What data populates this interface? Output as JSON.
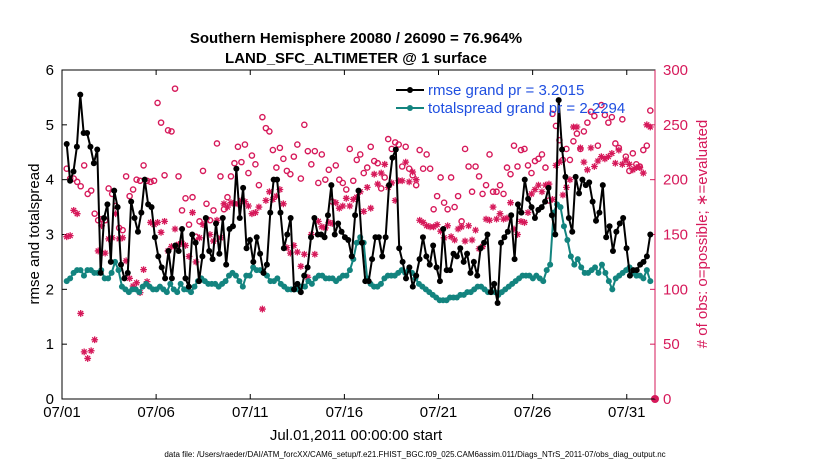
{
  "chart_data": {
    "type": "line",
    "title_line1": "Southern Hemisphere 20080 / 26090 = 76.964%",
    "title_line2": "LAND_SFC_ALTIMETER @ 1 surface",
    "xlabel": "Jul.01,2011 00:00:00 start",
    "ylabel": "rmse and totalspread",
    "ylabel_right": "# of obs: o=possible; ∗=evaluated",
    "footnote": "data file: /Users/raeder/DAI/ATM_forcXX/CAM6_setup/f.e21.FHIST_BGC.f09_025.CAM6assim.011/Diags_NTrS_2011-07/obs_diag_output.nc",
    "xlim": [
      0,
      31.5
    ],
    "ylim": [
      0,
      6
    ],
    "ylim_right": [
      0,
      300
    ],
    "x_ticks": [
      0,
      5,
      10,
      15,
      20,
      25,
      30
    ],
    "x_tick_labels": [
      "07/01",
      "07/06",
      "07/11",
      "07/16",
      "07/21",
      "07/26",
      "07/31"
    ],
    "y_ticks": [
      0,
      1,
      2,
      3,
      4,
      5,
      6
    ],
    "y_tick_labels": [
      "0",
      "1",
      "2",
      "3",
      "4",
      "5",
      "6"
    ],
    "y_right_ticks": [
      0,
      50,
      100,
      150,
      200,
      250,
      300
    ],
    "y_right_tick_labels": [
      "0",
      "50",
      "100",
      "150",
      "200",
      "250",
      "300"
    ],
    "colors": {
      "rmse": "#000000",
      "spread": "#13847f",
      "obs": "#d6195a",
      "legend_text": "#1f4fe0"
    },
    "series": [
      {
        "name": "rmse grand pr = 3.2015",
        "color": "#000000",
        "values": [
          4.65,
          3.98,
          4.15,
          4.6,
          5.55,
          4.85,
          4.85,
          4.6,
          4.3,
          4.55,
          2.3,
          3.3,
          3.55,
          2.5,
          3.8,
          3.5,
          2.45,
          2.2,
          2.3,
          3.6,
          3.3,
          3.05,
          3.4,
          4.0,
          3.55,
          3.5,
          2.95,
          2.6,
          2.4,
          2.2,
          2.7,
          2.2,
          2.8,
          2.7,
          3.1,
          2.2,
          2.05,
          3.0,
          2.85,
          2.15,
          2.6,
          3.3,
          2.7,
          2.55,
          3.2,
          2.65,
          3.3,
          2.45,
          3.1,
          3.15,
          4.2,
          3.3,
          3.85,
          2.75,
          2.9,
          2.5,
          2.95,
          2.65,
          2.3,
          2.45,
          3.4,
          4.0,
          4.0,
          3.4,
          2.75,
          3.0,
          3.3,
          2.0,
          2.1,
          1.95,
          2.25,
          2.4,
          2.95,
          3.3,
          3.0,
          3.0,
          2.95,
          3.35,
          3.9,
          3.0,
          3.2,
          3.05,
          2.95,
          2.9,
          2.6,
          3.35,
          3.8,
          2.85,
          2.15,
          2.15,
          2.55,
          2.95,
          2.95,
          2.6,
          2.95,
          3.9,
          4.4,
          4.55,
          2.75,
          2.5,
          2.2,
          2.4,
          2.05,
          2.25,
          2.55,
          2.95,
          2.6,
          2.45,
          2.8,
          2.4,
          2.15,
          3.1,
          2.35,
          2.35,
          2.65,
          2.6,
          2.75,
          2.5,
          2.65,
          2.3,
          2.5,
          2.25,
          2.75,
          2.85,
          3.0,
          1.95,
          2.1,
          1.75,
          2.85,
          2.95,
          3.05,
          3.35,
          2.55,
          3.55,
          3.4,
          4.0,
          3.65,
          3.5,
          3.3,
          3.45,
          3.5,
          3.6,
          3.85,
          3.35,
          3.0,
          5.45,
          4.55,
          4.05,
          3.3,
          3.05,
          4.05,
          3.75,
          4.0,
          3.9,
          3.95,
          3.6,
          3.25,
          3.4,
          3.9,
          2.95,
          3.15,
          2.7,
          3.05,
          3.2,
          3.3,
          2.75,
          2.25,
          2.35,
          2.35,
          2.45,
          2.5,
          2.6,
          3.0
        ]
      },
      {
        "name": "totalspread grand pr = 2.2294",
        "color": "#13847f",
        "values": [
          2.15,
          2.2,
          2.3,
          2.35,
          2.35,
          2.25,
          2.35,
          2.35,
          2.3,
          2.3,
          2.35,
          2.2,
          2.2,
          2.3,
          2.5,
          2.35,
          2.05,
          2.0,
          1.95,
          2.0,
          2.0,
          1.95,
          2.05,
          2.1,
          2.05,
          2.0,
          2.0,
          2.05,
          2.0,
          1.95,
          2.1,
          2.0,
          1.95,
          2.1,
          2.0,
          2.0,
          1.95,
          2.05,
          2.15,
          2.2,
          2.15,
          2.1,
          2.1,
          2.1,
          2.05,
          2.1,
          2.15,
          2.25,
          2.3,
          2.25,
          2.15,
          2.05,
          2.25,
          2.25,
          2.4,
          2.35,
          2.35,
          2.3,
          2.25,
          2.15,
          2.15,
          2.2,
          2.1,
          2.05,
          2.0,
          2.0,
          2.0,
          2.0,
          2.05,
          2.05,
          2.15,
          2.1,
          2.2,
          2.25,
          2.25,
          2.2,
          2.2,
          2.2,
          2.15,
          2.2,
          2.25,
          2.25,
          2.35,
          2.55,
          2.85,
          2.95,
          2.85,
          2.2,
          2.1,
          2.05,
          2.05,
          2.1,
          2.2,
          2.25,
          2.25,
          2.25,
          2.3,
          2.35,
          2.3,
          2.35,
          2.3,
          2.2,
          2.1,
          2.05,
          2.0,
          1.95,
          1.9,
          1.85,
          1.8,
          1.8,
          1.8,
          1.85,
          1.85,
          1.85,
          1.9,
          1.9,
          1.95,
          1.95,
          2.0,
          2.05,
          2.05,
          2.0,
          1.95,
          1.95,
          1.95,
          1.9,
          1.95,
          2.0,
          2.05,
          2.1,
          2.15,
          2.2,
          2.25,
          2.25,
          2.25,
          2.2,
          2.25,
          2.2,
          2.15,
          2.35,
          2.45,
          3.4,
          3.55,
          3.5,
          3.15,
          2.9,
          2.6,
          2.45,
          2.55,
          2.4,
          2.3,
          2.3,
          2.35,
          2.4,
          2.3,
          2.45,
          2.3,
          2.15,
          2.0,
          2.2,
          2.25,
          2.3,
          2.35,
          2.4,
          2.3,
          2.25,
          2.25,
          2.2,
          2.35,
          2.15
        ]
      }
    ],
    "obs_possible": {
      "marker": "o",
      "color": "#d6195a",
      "values": [
        210,
        201,
        201,
        198,
        194,
        213,
        187,
        190,
        169,
        163,
        164,
        163,
        192,
        187,
        176,
        156,
        154,
        203,
        185,
        191,
        200,
        199,
        213,
        199,
        198,
        199,
        270,
        252,
        204,
        245,
        244,
        283,
        203,
        172,
        183,
        159,
        184,
        148,
        162,
        208,
        178,
        163,
        172,
        233,
        203,
        173,
        184,
        203,
        215,
        230,
        216,
        232,
        206,
        222,
        214,
        195,
        257,
        247,
        244,
        227,
        211,
        229,
        219,
        208,
        205,
        221,
        232,
        201,
        250,
        226,
        214,
        226,
        197,
        223,
        200,
        209,
        180,
        213,
        200,
        197,
        191,
        228,
        199,
        218,
        223,
        206,
        211,
        230,
        217,
        215,
        192,
        202,
        237,
        228,
        234,
        232,
        212,
        230,
        210,
        204,
        195,
        227,
        210,
        223,
        210,
        173,
        185,
        202,
        179,
        173,
        202,
        175,
        185,
        162,
        228,
        212,
        189,
        212,
        203,
        187,
        195,
        223,
        189,
        189,
        195,
        187,
        211,
        205,
        231,
        212,
        227,
        228,
        213,
        206,
        217,
        219,
        223,
        211,
        181,
        260,
        249,
        236,
        218,
        228,
        218,
        235,
        242,
        228,
        244,
        252,
        262,
        258,
        231,
        268,
        259,
        252,
        257,
        233,
        229,
        255,
        221,
        208,
        224,
        214,
        212,
        227,
        231,
        263
      ]
    },
    "obs_evaluated": {
      "marker": "*",
      "color": "#d6195a",
      "values": [
        148,
        149,
        172,
        169,
        78,
        43,
        37,
        44,
        54,
        135,
        158,
        133,
        146,
        147,
        169,
        146,
        147,
        126,
        110,
        103,
        106,
        97,
        118,
        107,
        161,
        159,
        161,
        152,
        162,
        135,
        139,
        155,
        141,
        142,
        140,
        130,
        170,
        125,
        147,
        159,
        164,
        150,
        144,
        163,
        147,
        178,
        175,
        179,
        178,
        178,
        181,
        180,
        176,
        169,
        170,
        175,
        82,
        181,
        189,
        182,
        185,
        191,
        178,
        138,
        133,
        140,
        134,
        121,
        132,
        111,
        150,
        132,
        162,
        157,
        156,
        161,
        160,
        179,
        174,
        176,
        183,
        176,
        182,
        184,
        189,
        171,
        193,
        174,
        205,
        196,
        206,
        214,
        193,
        197,
        181,
        199,
        199,
        216,
        198,
        207,
        200,
        163,
        161,
        158,
        157,
        157,
        159,
        153,
        147,
        158,
        148,
        145,
        155,
        157,
        144,
        158,
        145,
        154,
        137,
        139,
        164,
        163,
        175,
        164,
        169,
        164,
        165,
        179,
        155,
        150,
        162,
        161,
        170,
        187,
        191,
        195,
        189,
        195,
        196,
        182,
        213,
        216,
        186,
        193,
        200,
        248,
        248,
        229,
        216,
        209,
        229,
        212,
        217,
        221,
        219,
        221,
        224,
        215,
        227,
        214,
        218,
        214,
        209,
        211,
        211,
        206,
        250,
        248
      ]
    }
  },
  "legend_entries": [
    "rmse grand pr = 3.2015",
    "totalspread grand pr = 2.2294"
  ]
}
